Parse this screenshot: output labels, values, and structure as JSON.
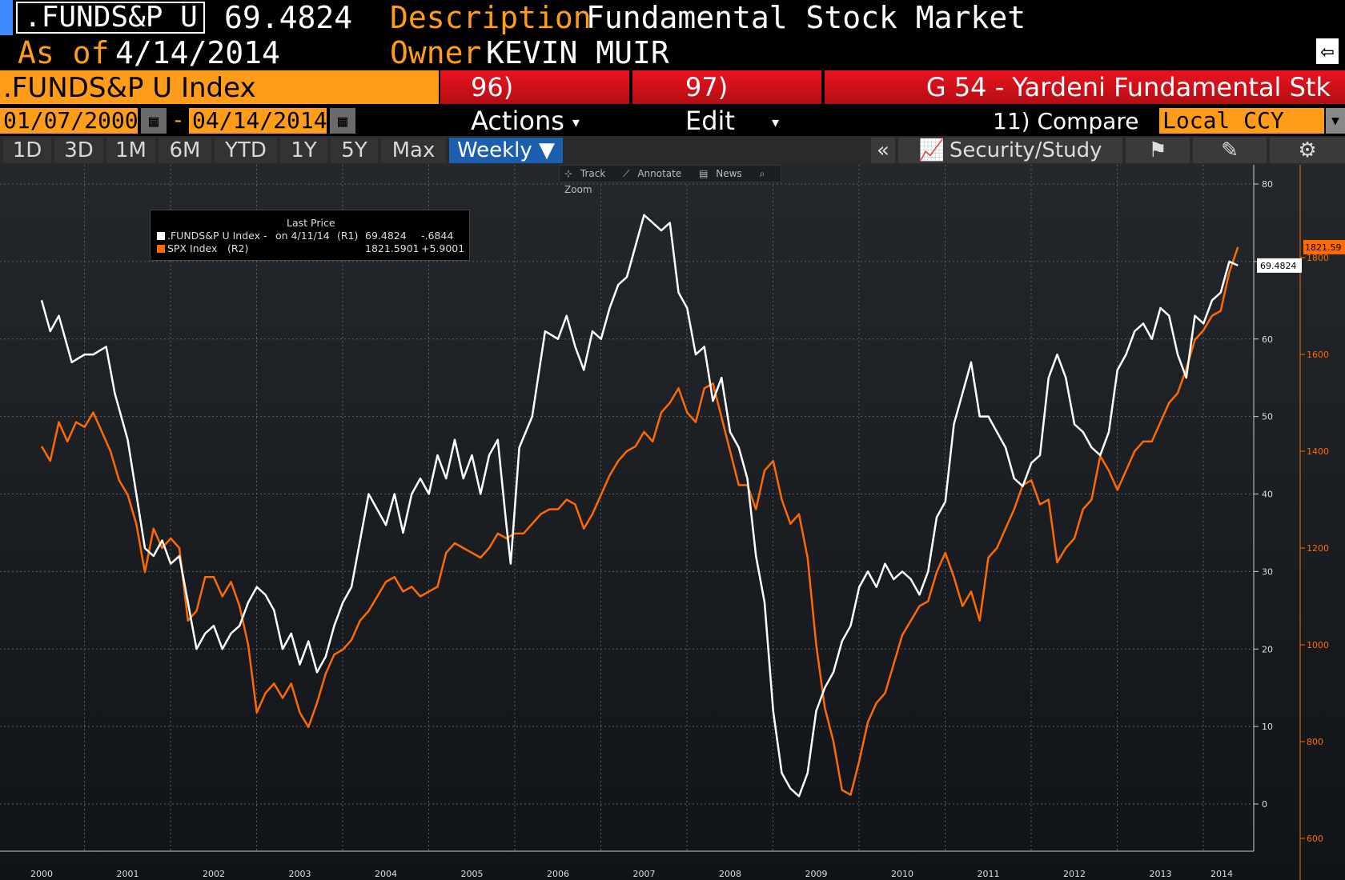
{
  "header": {
    "ticker": ".FUNDS&P U",
    "price": "69.4824",
    "description_label": "Description",
    "description_value": "Fundamental Stock Market",
    "as_of_label": "As of",
    "as_of_value": "4/14/2014",
    "owner_label": "Owner",
    "owner_value": "KEVIN MUIR"
  },
  "toolbar": {
    "index_name": ".FUNDS&P U Index",
    "actions_label": "96) Actions",
    "edit_label": "97) Edit",
    "chart_title": "G 54 - Yardeni Fundamental Stk",
    "start_date": "01/07/2000",
    "date_sep": "-",
    "end_date": "04/14/2014",
    "compare_label": "11) Compare",
    "currency": "Local CCY"
  },
  "tabs": [
    "1D",
    "3D",
    "1M",
    "6M",
    "YTD",
    "1Y",
    "5Y",
    "Max"
  ],
  "period": "Weekly ▼",
  "security_study_label": "Security/Study",
  "collapse_label": "«",
  "chart_tools": [
    "Track",
    "Annotate",
    "News",
    "Zoom"
  ],
  "legend": {
    "title": "Last Price",
    "row1_name": ".FUNDS&P U Index -",
    "row1_date": "on 4/11/14",
    "row1_axis": "(R1)",
    "row1_value": "69.4824",
    "row1_change": "-.6844",
    "row2_name": "SPX Index",
    "row2_axis": "(R2)",
    "row2_value": "1821.5901",
    "row2_change": "+5.9001"
  },
  "colors": {
    "funds": "#ffffff",
    "spx": "#ff6a00",
    "accent": "#ff9c1a",
    "red": "#e8141e"
  },
  "chart_data": {
    "type": "line",
    "x_ticks": [
      "2000",
      "2001",
      "2002",
      "2003",
      "2004",
      "2005",
      "2006",
      "2007",
      "2008",
      "2009",
      "2010",
      "2011",
      "2012",
      "2013",
      "2014"
    ],
    "y1_axis": {
      "ticks": [
        0,
        10,
        20,
        30,
        40,
        50,
        60,
        70,
        80
      ],
      "range": [
        0,
        80
      ]
    },
    "y2_axis": {
      "ticks": [
        600,
        800,
        1000,
        1200,
        1400,
        1600,
        1800
      ],
      "range": [
        580,
        1855
      ]
    },
    "last_labels": {
      "funds": "69.4824",
      "spx": "1821.59"
    },
    "series": [
      {
        "name": ".FUNDS&P U Index",
        "axis": "R1",
        "points": [
          [
            2000.0,
            65
          ],
          [
            2000.1,
            61
          ],
          [
            2000.2,
            63
          ],
          [
            2000.35,
            57
          ],
          [
            2000.5,
            58
          ],
          [
            2000.6,
            58
          ],
          [
            2000.75,
            59
          ],
          [
            2000.85,
            53
          ],
          [
            2001.0,
            47
          ],
          [
            2001.1,
            40
          ],
          [
            2001.2,
            33
          ],
          [
            2001.3,
            32
          ],
          [
            2001.4,
            34
          ],
          [
            2001.5,
            31
          ],
          [
            2001.6,
            32
          ],
          [
            2001.7,
            26
          ],
          [
            2001.8,
            20
          ],
          [
            2001.9,
            22
          ],
          [
            2002.0,
            23
          ],
          [
            2002.1,
            20
          ],
          [
            2002.2,
            22
          ],
          [
            2002.3,
            23
          ],
          [
            2002.4,
            26
          ],
          [
            2002.5,
            28
          ],
          [
            2002.6,
            27
          ],
          [
            2002.7,
            25
          ],
          [
            2002.8,
            20
          ],
          [
            2002.9,
            22
          ],
          [
            2003.0,
            18
          ],
          [
            2003.1,
            21
          ],
          [
            2003.2,
            17
          ],
          [
            2003.3,
            19
          ],
          [
            2003.4,
            23
          ],
          [
            2003.5,
            26
          ],
          [
            2003.6,
            28
          ],
          [
            2003.7,
            34
          ],
          [
            2003.8,
            40
          ],
          [
            2003.9,
            38
          ],
          [
            2004.0,
            36
          ],
          [
            2004.1,
            40
          ],
          [
            2004.2,
            35
          ],
          [
            2004.3,
            40
          ],
          [
            2004.4,
            42
          ],
          [
            2004.5,
            40
          ],
          [
            2004.6,
            45
          ],
          [
            2004.7,
            42
          ],
          [
            2004.8,
            47
          ],
          [
            2004.9,
            42
          ],
          [
            2005.0,
            45
          ],
          [
            2005.1,
            40
          ],
          [
            2005.2,
            45
          ],
          [
            2005.3,
            47
          ],
          [
            2005.4,
            36
          ],
          [
            2005.45,
            31
          ],
          [
            2005.55,
            46
          ],
          [
            2005.7,
            50
          ],
          [
            2005.85,
            61
          ],
          [
            2006.0,
            60
          ],
          [
            2006.1,
            63
          ],
          [
            2006.2,
            59
          ],
          [
            2006.3,
            56
          ],
          [
            2006.4,
            61
          ],
          [
            2006.5,
            60
          ],
          [
            2006.6,
            64
          ],
          [
            2006.7,
            67
          ],
          [
            2006.8,
            68
          ],
          [
            2006.9,
            72
          ],
          [
            2007.0,
            76
          ],
          [
            2007.1,
            75
          ],
          [
            2007.2,
            74
          ],
          [
            2007.3,
            75
          ],
          [
            2007.4,
            66
          ],
          [
            2007.5,
            64
          ],
          [
            2007.6,
            58
          ],
          [
            2007.7,
            59
          ],
          [
            2007.8,
            52
          ],
          [
            2007.9,
            55
          ],
          [
            2008.0,
            48
          ],
          [
            2008.1,
            46
          ],
          [
            2008.2,
            42
          ],
          [
            2008.3,
            32
          ],
          [
            2008.4,
            26
          ],
          [
            2008.5,
            12
          ],
          [
            2008.6,
            4
          ],
          [
            2008.7,
            2
          ],
          [
            2008.8,
            1
          ],
          [
            2008.9,
            4
          ],
          [
            2009.0,
            12
          ],
          [
            2009.1,
            15
          ],
          [
            2009.2,
            17
          ],
          [
            2009.3,
            21
          ],
          [
            2009.4,
            23
          ],
          [
            2009.5,
            28
          ],
          [
            2009.6,
            30
          ],
          [
            2009.7,
            28
          ],
          [
            2009.8,
            31
          ],
          [
            2009.9,
            29
          ],
          [
            2010.0,
            30
          ],
          [
            2010.1,
            29
          ],
          [
            2010.2,
            27
          ],
          [
            2010.3,
            30
          ],
          [
            2010.4,
            37
          ],
          [
            2010.5,
            39
          ],
          [
            2010.6,
            49
          ],
          [
            2010.7,
            53
          ],
          [
            2010.8,
            57
          ],
          [
            2010.9,
            50
          ],
          [
            2011.0,
            50
          ],
          [
            2011.1,
            48
          ],
          [
            2011.2,
            46
          ],
          [
            2011.3,
            42
          ],
          [
            2011.4,
            41
          ],
          [
            2011.5,
            44
          ],
          [
            2011.6,
            45
          ],
          [
            2011.7,
            55
          ],
          [
            2011.8,
            58
          ],
          [
            2011.9,
            55
          ],
          [
            2012.0,
            49
          ],
          [
            2012.1,
            48
          ],
          [
            2012.2,
            46
          ],
          [
            2012.3,
            45
          ],
          [
            2012.4,
            48
          ],
          [
            2012.5,
            56
          ],
          [
            2012.6,
            58
          ],
          [
            2012.7,
            61
          ],
          [
            2012.8,
            62
          ],
          [
            2012.9,
            60
          ],
          [
            2013.0,
            64
          ],
          [
            2013.1,
            63
          ],
          [
            2013.2,
            58
          ],
          [
            2013.3,
            55
          ],
          [
            2013.4,
            63
          ],
          [
            2013.5,
            62
          ],
          [
            2013.6,
            65
          ],
          [
            2013.7,
            66
          ],
          [
            2013.8,
            70
          ],
          [
            2013.9,
            69.48
          ]
        ]
      },
      {
        "name": "SPX Index",
        "axis": "R2",
        "points": [
          [
            2000.0,
            1410
          ],
          [
            2000.1,
            1380
          ],
          [
            2000.2,
            1460
          ],
          [
            2000.3,
            1420
          ],
          [
            2000.4,
            1460
          ],
          [
            2000.5,
            1450
          ],
          [
            2000.6,
            1480
          ],
          [
            2000.7,
            1440
          ],
          [
            2000.8,
            1400
          ],
          [
            2000.9,
            1340
          ],
          [
            2001.0,
            1310
          ],
          [
            2001.1,
            1250
          ],
          [
            2001.2,
            1150
          ],
          [
            2001.3,
            1240
          ],
          [
            2001.4,
            1200
          ],
          [
            2001.5,
            1220
          ],
          [
            2001.6,
            1200
          ],
          [
            2001.7,
            1050
          ],
          [
            2001.8,
            1070
          ],
          [
            2001.9,
            1140
          ],
          [
            2002.0,
            1140
          ],
          [
            2002.1,
            1100
          ],
          [
            2002.2,
            1130
          ],
          [
            2002.3,
            1080
          ],
          [
            2002.4,
            1000
          ],
          [
            2002.5,
            860
          ],
          [
            2002.6,
            900
          ],
          [
            2002.7,
            920
          ],
          [
            2002.8,
            890
          ],
          [
            2002.9,
            920
          ],
          [
            2003.0,
            860
          ],
          [
            2003.1,
            830
          ],
          [
            2003.2,
            880
          ],
          [
            2003.3,
            940
          ],
          [
            2003.4,
            980
          ],
          [
            2003.5,
            990
          ],
          [
            2003.6,
            1010
          ],
          [
            2003.7,
            1050
          ],
          [
            2003.8,
            1070
          ],
          [
            2003.9,
            1100
          ],
          [
            2004.0,
            1130
          ],
          [
            2004.1,
            1140
          ],
          [
            2004.2,
            1110
          ],
          [
            2004.3,
            1120
          ],
          [
            2004.4,
            1100
          ],
          [
            2004.5,
            1110
          ],
          [
            2004.6,
            1120
          ],
          [
            2004.7,
            1190
          ],
          [
            2004.8,
            1210
          ],
          [
            2004.9,
            1200
          ],
          [
            2005.0,
            1190
          ],
          [
            2005.1,
            1180
          ],
          [
            2005.2,
            1200
          ],
          [
            2005.3,
            1230
          ],
          [
            2005.4,
            1220
          ],
          [
            2005.5,
            1230
          ],
          [
            2005.6,
            1230
          ],
          [
            2005.7,
            1250
          ],
          [
            2005.8,
            1270
          ],
          [
            2005.9,
            1280
          ],
          [
            2006.0,
            1280
          ],
          [
            2006.1,
            1300
          ],
          [
            2006.2,
            1290
          ],
          [
            2006.3,
            1240
          ],
          [
            2006.4,
            1270
          ],
          [
            2006.5,
            1310
          ],
          [
            2006.6,
            1350
          ],
          [
            2006.7,
            1380
          ],
          [
            2006.8,
            1400
          ],
          [
            2006.9,
            1410
          ],
          [
            2007.0,
            1440
          ],
          [
            2007.1,
            1420
          ],
          [
            2007.2,
            1480
          ],
          [
            2007.3,
            1500
          ],
          [
            2007.4,
            1530
          ],
          [
            2007.5,
            1480
          ],
          [
            2007.6,
            1460
          ],
          [
            2007.7,
            1530
          ],
          [
            2007.8,
            1540
          ],
          [
            2007.9,
            1470
          ],
          [
            2008.0,
            1400
          ],
          [
            2008.1,
            1330
          ],
          [
            2008.2,
            1330
          ],
          [
            2008.3,
            1280
          ],
          [
            2008.4,
            1360
          ],
          [
            2008.5,
            1380
          ],
          [
            2008.6,
            1300
          ],
          [
            2008.7,
            1250
          ],
          [
            2008.8,
            1270
          ],
          [
            2008.9,
            1180
          ],
          [
            2009.0,
            1000
          ],
          [
            2009.1,
            870
          ],
          [
            2009.2,
            800
          ],
          [
            2009.3,
            700
          ],
          [
            2009.4,
            690
          ],
          [
            2009.5,
            760
          ],
          [
            2009.6,
            840
          ],
          [
            2009.7,
            880
          ],
          [
            2009.8,
            900
          ],
          [
            2009.9,
            960
          ],
          [
            2010.0,
            1020
          ],
          [
            2010.1,
            1050
          ],
          [
            2010.2,
            1080
          ],
          [
            2010.3,
            1090
          ],
          [
            2010.4,
            1150
          ],
          [
            2010.5,
            1190
          ],
          [
            2010.6,
            1140
          ],
          [
            2010.7,
            1080
          ],
          [
            2010.8,
            1110
          ],
          [
            2010.9,
            1050
          ],
          [
            2011.0,
            1180
          ],
          [
            2011.1,
            1200
          ],
          [
            2011.2,
            1240
          ],
          [
            2011.3,
            1280
          ],
          [
            2011.4,
            1330
          ],
          [
            2011.5,
            1340
          ],
          [
            2011.6,
            1290
          ],
          [
            2011.7,
            1300
          ],
          [
            2011.8,
            1170
          ],
          [
            2011.9,
            1200
          ],
          [
            2012.0,
            1220
          ],
          [
            2012.1,
            1280
          ],
          [
            2012.2,
            1300
          ],
          [
            2012.3,
            1390
          ],
          [
            2012.4,
            1360
          ],
          [
            2012.5,
            1320
          ],
          [
            2012.6,
            1360
          ],
          [
            2012.7,
            1400
          ],
          [
            2012.8,
            1420
          ],
          [
            2012.9,
            1420
          ],
          [
            2013.0,
            1460
          ],
          [
            2013.1,
            1500
          ],
          [
            2013.2,
            1520
          ],
          [
            2013.3,
            1570
          ],
          [
            2013.4,
            1630
          ],
          [
            2013.5,
            1650
          ],
          [
            2013.6,
            1680
          ],
          [
            2013.7,
            1690
          ],
          [
            2013.8,
            1770
          ],
          [
            2013.9,
            1821.59
          ]
        ]
      }
    ]
  }
}
